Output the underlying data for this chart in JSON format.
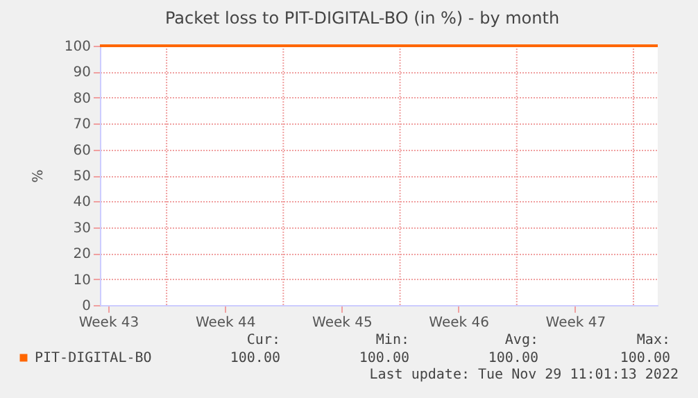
{
  "chart_data": {
    "type": "line",
    "title": "Packet loss to PIT-DIGITAL-BO (in %) - by month",
    "ylabel": "%",
    "x": [
      "2022-10-27T00:00",
      "2022-11-29T11:00"
    ],
    "series": [
      {
        "name": "PIT-DIGITAL-BO",
        "color": "#ff6600",
        "values": [
          100,
          100
        ]
      }
    ],
    "xlim": [
      "2022-10-27T00:00",
      "2022-11-29T11:00"
    ],
    "xticks": [
      {
        "value": "2022-10-27T12:00",
        "label": "Week 43"
      },
      {
        "value": "2022-10-31",
        "label": null
      },
      {
        "value": "2022-11-03T12:00",
        "label": "Week 44"
      },
      {
        "value": "2022-11-07",
        "label": null
      },
      {
        "value": "2022-11-10T12:00",
        "label": "Week 45"
      },
      {
        "value": "2022-11-14",
        "label": null
      },
      {
        "value": "2022-11-17T12:00",
        "label": "Week 46"
      },
      {
        "value": "2022-11-21",
        "label": null
      },
      {
        "value": "2022-11-24T12:00",
        "label": "Week 47"
      },
      {
        "value": "2022-11-28",
        "label": null
      }
    ],
    "ylim": [
      0,
      100
    ],
    "yticks": [
      0,
      10,
      20,
      30,
      40,
      50,
      60,
      70,
      80,
      90,
      100
    ],
    "grid": true,
    "legend": "bottom",
    "marker": "none",
    "line_style": "solid",
    "annotations": [
      "Cur:",
      "100.00",
      "Min:",
      "100.00",
      "Avg:",
      "100.00",
      "Max:",
      "100.00",
      "Last update: Tue Nov 29 11:01:13 2022"
    ]
  }
}
